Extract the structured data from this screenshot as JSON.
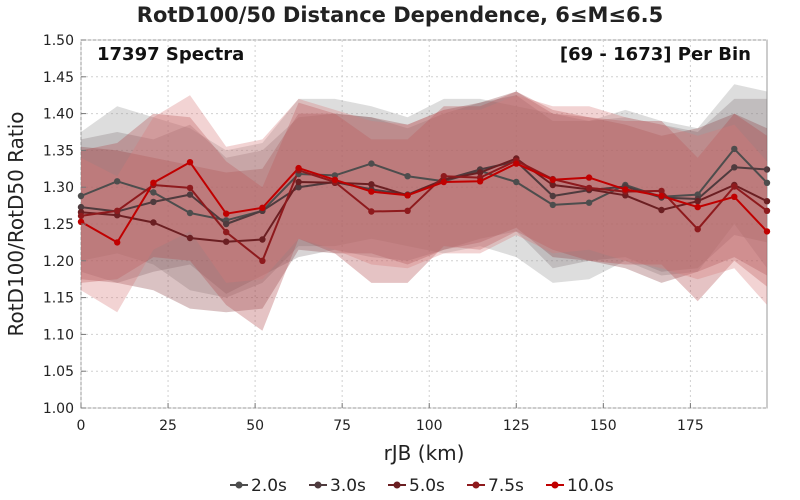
{
  "chart_data": {
    "type": "line",
    "title": "RotD100/50 Distance Dependence, 6≤M≤6.5",
    "annotation_left": "17397 Spectra",
    "annotation_right": "[69 - 1673] Per Bin",
    "xlabel": "rJB (km)",
    "ylabel": "RotD100/RotD50 Ratio",
    "xlim": [
      0,
      197
    ],
    "ylim": [
      1.0,
      1.5
    ],
    "xticks": [
      "0",
      "25",
      "50",
      "75",
      "100",
      "125",
      "150",
      "175"
    ],
    "yticks": [
      "1.00",
      "1.05",
      "1.10",
      "1.15",
      "1.20",
      "1.25",
      "1.30",
      "1.35",
      "1.40",
      "1.45",
      "1.50"
    ],
    "grid": true,
    "legend_position": "bottom",
    "x": [
      0,
      10.4,
      20.8,
      31.3,
      41.7,
      52.1,
      62.5,
      72.9,
      83.4,
      93.8,
      104.2,
      114.6,
      125.0,
      135.5,
      145.9,
      156.3,
      166.7,
      177.1,
      187.6,
      197
    ],
    "series": [
      {
        "name": "2.0s",
        "color": "#4d4d4d",
        "band_color": "#999999",
        "values": [
          1.288,
          1.308,
          1.293,
          1.265,
          1.255,
          1.268,
          1.318,
          1.316,
          1.332,
          1.315,
          1.308,
          1.322,
          1.307,
          1.276,
          1.279,
          1.303,
          1.287,
          1.29,
          1.352,
          1.306
        ],
        "upper": [
          1.375,
          1.41,
          1.395,
          1.38,
          1.35,
          1.36,
          1.42,
          1.42,
          1.41,
          1.395,
          1.42,
          1.42,
          1.41,
          1.4,
          1.39,
          1.405,
          1.39,
          1.38,
          1.44,
          1.43
        ],
        "lower": [
          1.2,
          1.21,
          1.195,
          1.16,
          1.15,
          1.17,
          1.22,
          1.22,
          1.23,
          1.22,
          1.21,
          1.22,
          1.205,
          1.17,
          1.175,
          1.2,
          1.18,
          1.185,
          1.25,
          1.19
        ]
      },
      {
        "name": "3.0s",
        "color": "#4f3b3e",
        "band_color": "#8a7b7e",
        "values": [
          1.273,
          1.267,
          1.28,
          1.29,
          1.25,
          1.268,
          1.3,
          1.307,
          1.297,
          1.29,
          1.31,
          1.324,
          1.335,
          1.288,
          1.296,
          1.301,
          1.286,
          1.284,
          1.327,
          1.324
        ],
        "upper": [
          1.365,
          1.375,
          1.365,
          1.385,
          1.34,
          1.35,
          1.395,
          1.4,
          1.395,
          1.38,
          1.4,
          1.415,
          1.425,
          1.39,
          1.39,
          1.395,
          1.385,
          1.375,
          1.42,
          1.42
        ],
        "lower": [
          1.185,
          1.17,
          1.185,
          1.195,
          1.155,
          1.18,
          1.205,
          1.215,
          1.205,
          1.2,
          1.215,
          1.23,
          1.24,
          1.19,
          1.2,
          1.205,
          1.185,
          1.19,
          1.235,
          1.225
        ]
      },
      {
        "name": "5.0s",
        "color": "#6b1f22",
        "band_color": "#8e4548",
        "values": [
          1.266,
          1.262,
          1.252,
          1.231,
          1.226,
          1.229,
          1.307,
          1.306,
          1.304,
          1.289,
          1.31,
          1.32,
          1.339,
          1.303,
          1.297,
          1.289,
          1.269,
          1.281,
          1.303,
          1.281
        ],
        "upper": [
          1.355,
          1.35,
          1.34,
          1.33,
          1.32,
          1.325,
          1.4,
          1.4,
          1.395,
          1.385,
          1.405,
          1.415,
          1.43,
          1.4,
          1.395,
          1.385,
          1.37,
          1.38,
          1.4,
          1.38
        ],
        "lower": [
          1.175,
          1.17,
          1.16,
          1.135,
          1.13,
          1.135,
          1.215,
          1.21,
          1.21,
          1.195,
          1.215,
          1.225,
          1.245,
          1.205,
          1.2,
          1.19,
          1.17,
          1.185,
          1.205,
          1.18
        ]
      },
      {
        "name": "7.5s",
        "color": "#8e1a1d",
        "band_color": "#b04a4d",
        "values": [
          1.261,
          1.268,
          1.303,
          1.299,
          1.239,
          1.2,
          1.323,
          1.307,
          1.267,
          1.268,
          1.315,
          1.313,
          1.336,
          1.311,
          1.299,
          1.294,
          1.295,
          1.243,
          1.301,
          1.268
        ],
        "upper": [
          1.35,
          1.36,
          1.4,
          1.395,
          1.335,
          1.3,
          1.415,
          1.4,
          1.365,
          1.365,
          1.41,
          1.41,
          1.43,
          1.405,
          1.395,
          1.39,
          1.39,
          1.34,
          1.4,
          1.37
        ],
        "lower": [
          1.17,
          1.175,
          1.205,
          1.2,
          1.14,
          1.105,
          1.23,
          1.21,
          1.17,
          1.17,
          1.22,
          1.215,
          1.24,
          1.215,
          1.2,
          1.195,
          1.195,
          1.145,
          1.2,
          1.165
        ]
      },
      {
        "name": "10.0s",
        "color": "#c00000",
        "band_color": "#d87a7a",
        "values": [
          1.253,
          1.225,
          1.306,
          1.334,
          1.264,
          1.272,
          1.326,
          1.31,
          1.294,
          1.289,
          1.307,
          1.308,
          1.332,
          1.31,
          1.313,
          1.297,
          1.288,
          1.273,
          1.287,
          1.24
        ],
        "upper": [
          1.34,
          1.315,
          1.395,
          1.425,
          1.355,
          1.365,
          1.42,
          1.405,
          1.39,
          1.385,
          1.405,
          1.405,
          1.425,
          1.41,
          1.41,
          1.395,
          1.385,
          1.37,
          1.385,
          1.335
        ],
        "lower": [
          1.16,
          1.13,
          1.215,
          1.24,
          1.17,
          1.175,
          1.23,
          1.215,
          1.195,
          1.19,
          1.21,
          1.21,
          1.235,
          1.21,
          1.215,
          1.2,
          1.19,
          1.175,
          1.19,
          1.14
        ]
      }
    ]
  }
}
